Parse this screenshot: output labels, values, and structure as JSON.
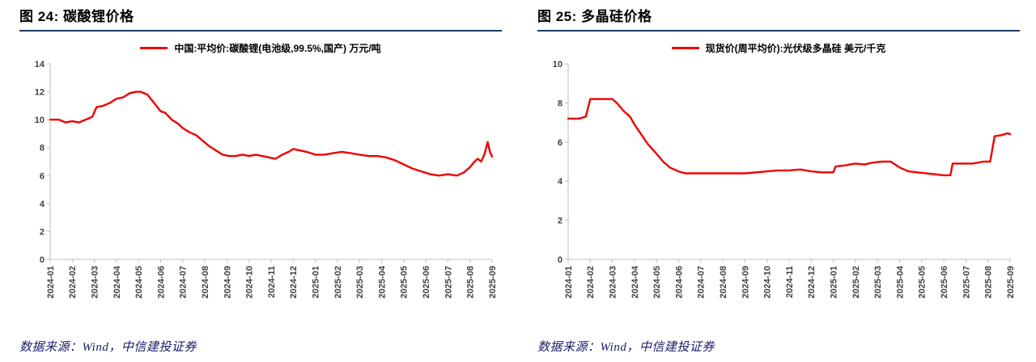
{
  "colors": {
    "line": "#ee0000",
    "title_rule": "#1f3864",
    "source_text": "#1b1b6a",
    "axis": "#bfbfbf",
    "tick_label": "#404040"
  },
  "footer": {
    "left_source": "数据来源：Wind，中信建投证券",
    "right_source": "数据来源：Wind，中信建投证券"
  },
  "chart_data": [
    {
      "id": "lithium-carbonate-price",
      "type": "line",
      "title": "图 24: 碳酸锂价格",
      "legend": "中国:平均价:碳酸锂(电池级,99.5%,国产) 万元/吨",
      "ylim": [
        0,
        14
      ],
      "yticks": [
        0,
        2,
        4,
        6,
        8,
        10,
        12,
        14
      ],
      "grid": false,
      "legend_position": "top-center",
      "categories": [
        "2024-01",
        "2024-02",
        "2024-03",
        "2024-04",
        "2024-05",
        "2024-06",
        "2024-07",
        "2024-08",
        "2024-09",
        "2024-10",
        "2024-11",
        "2024-12",
        "2025-01",
        "2025-02",
        "2025-03",
        "2025-04",
        "2025-05",
        "2025-06",
        "2025-07",
        "2025-08",
        "2025-09"
      ],
      "series": [
        {
          "name": "中国:平均价:碳酸锂(电池级,99.5%,国产)",
          "color": "#ee0000",
          "points": [
            [
              0,
              10.0
            ],
            [
              0.4,
              10.0
            ],
            [
              0.7,
              9.8
            ],
            [
              1.0,
              9.9
            ],
            [
              1.3,
              9.8
            ],
            [
              1.6,
              10.0
            ],
            [
              1.9,
              10.2
            ],
            [
              2.1,
              10.9
            ],
            [
              2.4,
              11.0
            ],
            [
              2.7,
              11.2
            ],
            [
              3.0,
              11.5
            ],
            [
              3.3,
              11.6
            ],
            [
              3.6,
              11.9
            ],
            [
              3.9,
              12.0
            ],
            [
              4.1,
              12.0
            ],
            [
              4.4,
              11.8
            ],
            [
              4.7,
              11.2
            ],
            [
              5.0,
              10.6
            ],
            [
              5.2,
              10.5
            ],
            [
              5.5,
              10.0
            ],
            [
              5.8,
              9.7
            ],
            [
              6.0,
              9.4
            ],
            [
              6.3,
              9.1
            ],
            [
              6.6,
              8.9
            ],
            [
              6.9,
              8.5
            ],
            [
              7.2,
              8.1
            ],
            [
              7.5,
              7.8
            ],
            [
              7.8,
              7.5
            ],
            [
              8.1,
              7.4
            ],
            [
              8.4,
              7.4
            ],
            [
              8.7,
              7.5
            ],
            [
              9.0,
              7.4
            ],
            [
              9.3,
              7.5
            ],
            [
              9.6,
              7.4
            ],
            [
              9.9,
              7.3
            ],
            [
              10.2,
              7.2
            ],
            [
              10.5,
              7.5
            ],
            [
              10.8,
              7.7
            ],
            [
              11.0,
              7.9
            ],
            [
              11.3,
              7.8
            ],
            [
              11.6,
              7.7
            ],
            [
              12.0,
              7.5
            ],
            [
              12.4,
              7.5
            ],
            [
              12.8,
              7.6
            ],
            [
              13.2,
              7.7
            ],
            [
              13.6,
              7.6
            ],
            [
              14.0,
              7.5
            ],
            [
              14.4,
              7.4
            ],
            [
              14.8,
              7.4
            ],
            [
              15.2,
              7.3
            ],
            [
              15.6,
              7.1
            ],
            [
              16.0,
              6.8
            ],
            [
              16.4,
              6.5
            ],
            [
              16.8,
              6.3
            ],
            [
              17.2,
              6.1
            ],
            [
              17.6,
              6.0
            ],
            [
              18.0,
              6.1
            ],
            [
              18.4,
              6.0
            ],
            [
              18.7,
              6.2
            ],
            [
              19.0,
              6.6
            ],
            [
              19.2,
              7.0
            ],
            [
              19.35,
              7.2
            ],
            [
              19.5,
              7.0
            ],
            [
              19.65,
              7.5
            ],
            [
              19.8,
              8.4
            ],
            [
              19.9,
              7.7
            ],
            [
              20.0,
              7.35
            ]
          ]
        }
      ]
    },
    {
      "id": "polysilicon-price",
      "type": "line",
      "title": "图 25: 多晶硅价格",
      "legend": "现货价(周平均价):光伏级多晶硅 美元/千克",
      "ylim": [
        0,
        10
      ],
      "yticks": [
        0,
        2,
        4,
        6,
        8,
        10
      ],
      "grid": false,
      "legend_position": "top-center",
      "categories": [
        "2024-01",
        "2024-02",
        "2024-03",
        "2024-04",
        "2024-05",
        "2024-06",
        "2024-07",
        "2024-08",
        "2024-09",
        "2024-10",
        "2024-11",
        "2024-12",
        "2025-01",
        "2025-02",
        "2025-03",
        "2025-04",
        "2025-05",
        "2025-06",
        "2025-07",
        "2025-08",
        "2025-09"
      ],
      "series": [
        {
          "name": "现货价(周平均价):光伏级多晶硅",
          "color": "#ee0000",
          "points": [
            [
              0,
              7.2
            ],
            [
              0.5,
              7.2
            ],
            [
              0.8,
              7.3
            ],
            [
              1.0,
              8.2
            ],
            [
              1.5,
              8.2
            ],
            [
              2.0,
              8.2
            ],
            [
              2.2,
              8.0
            ],
            [
              2.5,
              7.6
            ],
            [
              2.8,
              7.3
            ],
            [
              3.0,
              6.9
            ],
            [
              3.3,
              6.4
            ],
            [
              3.6,
              5.9
            ],
            [
              4.0,
              5.4
            ],
            [
              4.3,
              5.0
            ],
            [
              4.6,
              4.7
            ],
            [
              5.0,
              4.5
            ],
            [
              5.3,
              4.4
            ],
            [
              6.0,
              4.4
            ],
            [
              7.0,
              4.4
            ],
            [
              8.0,
              4.4
            ],
            [
              8.5,
              4.45
            ],
            [
              9.0,
              4.5
            ],
            [
              9.5,
              4.55
            ],
            [
              10.0,
              4.55
            ],
            [
              10.5,
              4.6
            ],
            [
              11.0,
              4.5
            ],
            [
              11.5,
              4.45
            ],
            [
              12.0,
              4.45
            ],
            [
              12.1,
              4.75
            ],
            [
              12.5,
              4.8
            ],
            [
              13.0,
              4.9
            ],
            [
              13.4,
              4.85
            ],
            [
              13.8,
              4.95
            ],
            [
              14.2,
              5.0
            ],
            [
              14.6,
              5.0
            ],
            [
              15.0,
              4.7
            ],
            [
              15.4,
              4.5
            ],
            [
              15.8,
              4.45
            ],
            [
              16.2,
              4.4
            ],
            [
              16.6,
              4.35
            ],
            [
              17.0,
              4.3
            ],
            [
              17.3,
              4.3
            ],
            [
              17.4,
              4.9
            ],
            [
              17.8,
              4.9
            ],
            [
              18.3,
              4.9
            ],
            [
              18.8,
              5.0
            ],
            [
              19.1,
              5.0
            ],
            [
              19.3,
              6.3
            ],
            [
              19.6,
              6.35
            ],
            [
              19.9,
              6.45
            ],
            [
              20.0,
              6.4
            ]
          ]
        }
      ]
    }
  ]
}
